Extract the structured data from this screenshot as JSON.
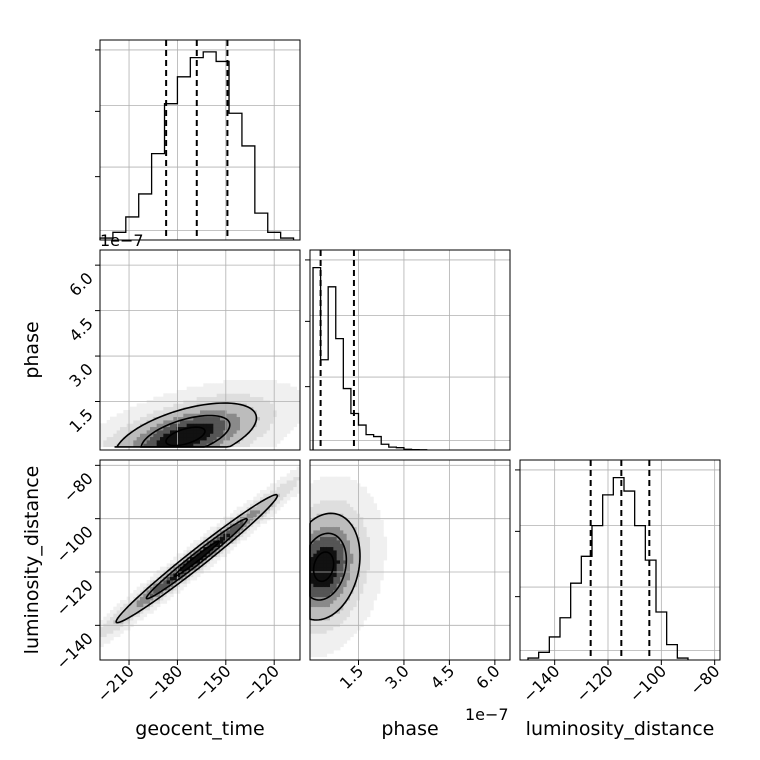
{
  "chart_data": {
    "type": "corner",
    "parameters": [
      "geocent_time",
      "phase",
      "luminosity_distance"
    ],
    "offset_text": "1e−7",
    "grid": true,
    "quantiles": {
      "geocent_time": [
        -187,
        -168,
        -149
      ],
      "phase": [
        2.5e-08,
        1.35e-07
      ],
      "luminosity_distance": [
        -126.5,
        -115,
        -104.5
      ]
    },
    "axes": {
      "geocent_time": {
        "range": [
          -228,
          -104
        ],
        "ticks": [
          -210,
          -180,
          -150,
          -120
        ],
        "tick_labels": [
          "−210",
          "−180",
          "−150",
          "−120"
        ]
      },
      "phase": {
        "range": [
          -1e-08,
          6.5e-07
        ],
        "ticks": [
          1.5e-07,
          3e-07,
          4.5e-07,
          6e-07
        ],
        "tick_labels": [
          "1.5",
          "3.0",
          "4.5",
          "6.0"
        ]
      },
      "luminosity_distance": {
        "range": [
          -153,
          -78
        ],
        "ticks": [
          -140,
          -120,
          -100,
          -80
        ],
        "tick_labels": [
          "−140",
          "−120",
          "−100",
          "−80"
        ]
      }
    },
    "histograms": {
      "geocent_time": {
        "bin_edges": [
          -228,
          -220,
          -212,
          -204,
          -196,
          -188,
          -180,
          -172,
          -164,
          -156,
          -148,
          -140,
          -132,
          -124,
          -116,
          -108
        ],
        "counts": [
          0.01,
          0.04,
          0.12,
          0.24,
          0.45,
          0.71,
          0.85,
          0.95,
          0.98,
          0.93,
          0.66,
          0.49,
          0.14,
          0.04,
          0.01
        ]
      },
      "phase": {
        "bin_edges": [
          0.0,
          2.5e-08,
          5e-08,
          7.5e-08,
          1e-07,
          1.25e-07,
          1.5e-07,
          1.75e-07,
          2e-07,
          2.25e-07,
          2.5e-07,
          2.75e-07,
          3e-07,
          3.25e-07,
          3.5e-07,
          3.75e-07
        ],
        "counts": [
          0.95,
          0.47,
          0.85,
          0.58,
          0.32,
          0.19,
          0.13,
          0.08,
          0.07,
          0.03,
          0.015,
          0.012,
          0.004,
          0.002,
          0.001
        ]
      },
      "luminosity_distance": {
        "bin_edges": [
          -150,
          -146,
          -142,
          -138,
          -134,
          -130,
          -126,
          -122,
          -118,
          -114,
          -110,
          -106,
          -102,
          -98,
          -94,
          -90
        ],
        "counts": [
          0.01,
          0.04,
          0.12,
          0.22,
          0.4,
          0.54,
          0.7,
          0.86,
          0.95,
          0.88,
          0.7,
          0.52,
          0.25,
          0.08,
          0.01
        ]
      }
    }
  }
}
